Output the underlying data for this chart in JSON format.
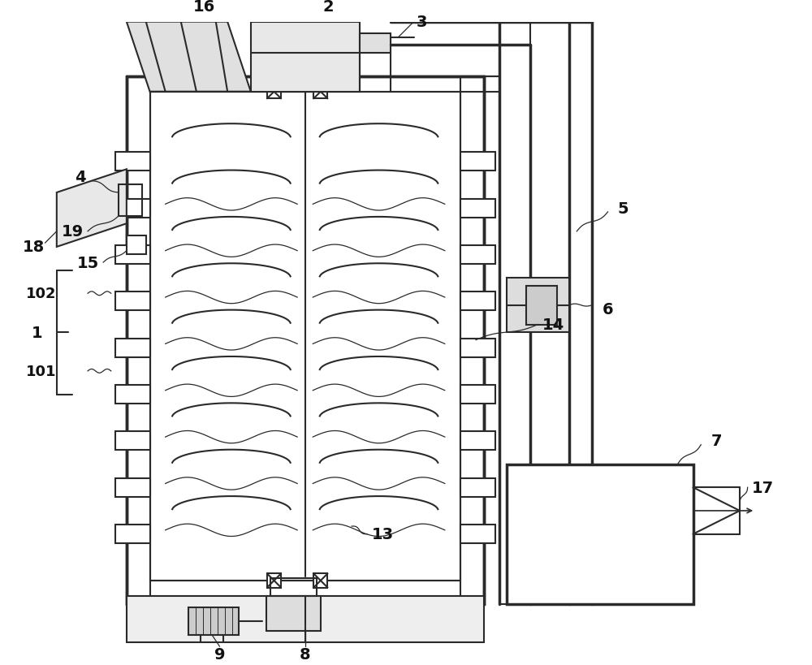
{
  "bg": "#ffffff",
  "lc": "#2a2a2a",
  "lw": 1.5,
  "tlw": 2.5,
  "fs": 14
}
